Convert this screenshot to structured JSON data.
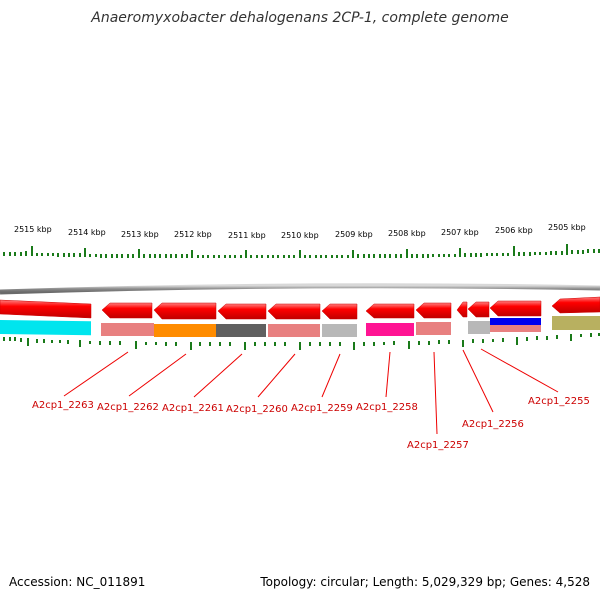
{
  "title": "Anaeromyxobacter dehalogenans 2CP-1, complete genome",
  "kbp_ticks": [
    "2515 kbp",
    "2514 kbp",
    "2513 kbp",
    "2512 kbp",
    "2511 kbp",
    "2510 kbp",
    "2509 kbp",
    "2508 kbp",
    "2507 kbp",
    "2506 kbp",
    "2505 kbp"
  ],
  "gene_labels": [
    "A2cp1_2263",
    "A2cp1_2262",
    "A2cp1_2261",
    "A2cp1_2260",
    "A2cp1_2259",
    "A2cp1_2258",
    "A2cp1_2257",
    "A2cp1_2256",
    "A2cp1_2255"
  ],
  "colors": {
    "gene_red": "#ff0000",
    "label_red": "#cc0000",
    "tick_green": "#1a7a1a",
    "backbone_gray": "#8c8c8c",
    "cyan": "#00e5ee",
    "salmon": "#e88080",
    "orange": "#ff8c00",
    "dark_gray": "#606060",
    "light_gray": "#b8b8b8",
    "magenta": "#ff1493",
    "blue": "#0000ee",
    "olive": "#b8b060"
  },
  "footer": {
    "accession": "Accession: NC_011891",
    "topology": "Topology: circular; Length: 5,029,329 bp; Genes: 4,528"
  }
}
